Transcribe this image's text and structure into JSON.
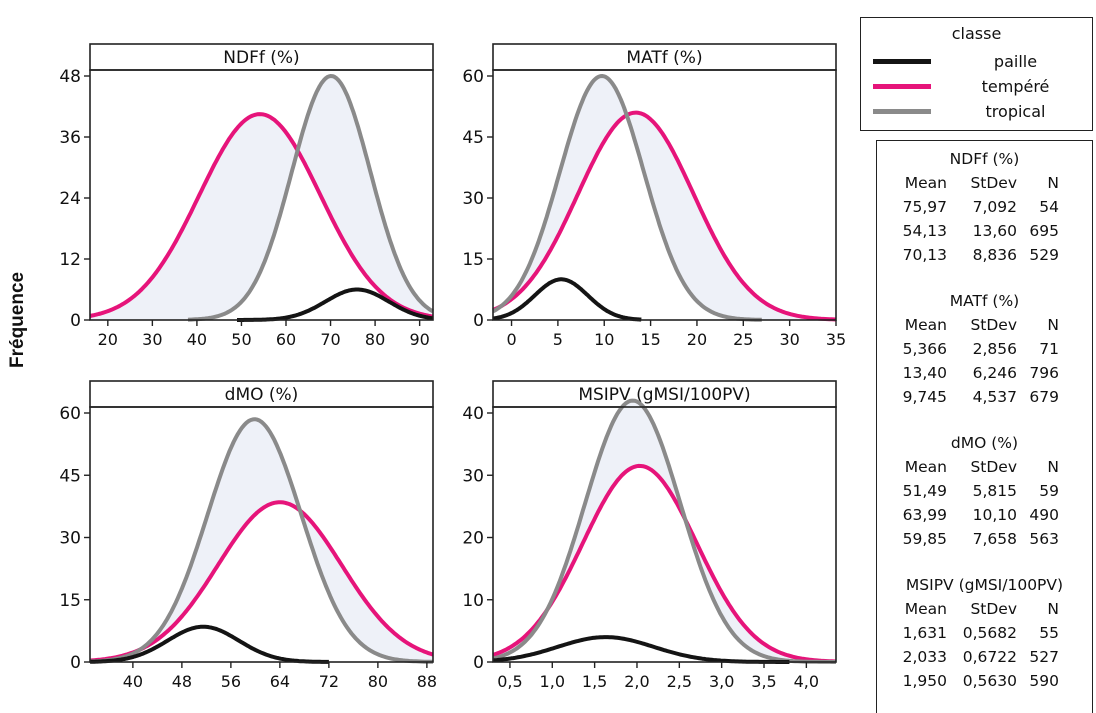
{
  "ylabel": "Fréquence",
  "legend": {
    "title": "classe",
    "items": [
      {
        "label": "paille",
        "color": "#141414"
      },
      {
        "label": "tempéré",
        "color": "#e6147a"
      },
      {
        "label": "tropical",
        "color": "#8a8a8a"
      }
    ]
  },
  "stats": [
    {
      "title": "NDFf (%)",
      "headers": [
        "Mean",
        "StDev",
        "N"
      ],
      "rows": [
        [
          "75,97",
          "7,092",
          "54"
        ],
        [
          "54,13",
          "13,60",
          "695"
        ],
        [
          "70,13",
          "8,836",
          "529"
        ]
      ]
    },
    {
      "title": "MATf (%)",
      "headers": [
        "Mean",
        "StDev",
        "N"
      ],
      "rows": [
        [
          "5,366",
          "2,856",
          "71"
        ],
        [
          "13,40",
          "6,246",
          "796"
        ],
        [
          "9,745",
          "4,537",
          "679"
        ]
      ]
    },
    {
      "title": "dMO (%)",
      "headers": [
        "Mean",
        "StDev",
        "N"
      ],
      "rows": [
        [
          "51,49",
          "5,815",
          "59"
        ],
        [
          "63,99",
          "10,10",
          "490"
        ],
        [
          "59,85",
          "7,658",
          "563"
        ]
      ]
    },
    {
      "title": "MSIPV (gMSI/100PV)",
      "headers": [
        "Mean",
        "StDev",
        "N"
      ],
      "rows": [
        [
          "1,631",
          "0,5682",
          "55"
        ],
        [
          "2,033",
          "0,6722",
          "527"
        ],
        [
          "1,950",
          "0,5630",
          "590"
        ]
      ]
    }
  ],
  "chart_data": [
    {
      "type": "line",
      "title": "NDFf (%)",
      "xlim": [
        16,
        93
      ],
      "ylim": [
        0,
        48
      ],
      "xticks": [
        20,
        30,
        40,
        50,
        60,
        70,
        80,
        90
      ],
      "xticklabels": [
        "20",
        "30",
        "40",
        "50",
        "60",
        "70",
        "80",
        "90"
      ],
      "yticks": [
        0,
        12,
        24,
        36,
        48
      ],
      "yticklabels": [
        "0",
        "12",
        "24",
        "36",
        "48"
      ],
      "series": [
        {
          "name": "paille",
          "mean": 75.97,
          "sd": 7.092,
          "peak": 6,
          "range": [
            49,
            93
          ]
        },
        {
          "name": "tempéré",
          "mean": 54.13,
          "sd": 13.6,
          "peak": 40.5,
          "range": [
            16,
            93
          ]
        },
        {
          "name": "tropical",
          "mean": 70.13,
          "sd": 8.836,
          "peak": 48,
          "range": [
            38,
            93
          ]
        }
      ]
    },
    {
      "type": "line",
      "title": "MATf (%)",
      "xlim": [
        -2,
        35
      ],
      "ylim": [
        0,
        60
      ],
      "xticks": [
        0,
        5,
        10,
        15,
        20,
        25,
        30,
        35
      ],
      "xticklabels": [
        "0",
        "5",
        "10",
        "15",
        "20",
        "25",
        "30",
        "35"
      ],
      "yticks": [
        0,
        15,
        30,
        45,
        60
      ],
      "yticklabels": [
        "0",
        "15",
        "30",
        "45",
        "60"
      ],
      "series": [
        {
          "name": "paille",
          "mean": 5.366,
          "sd": 2.856,
          "peak": 10,
          "range": [
            -2,
            14
          ]
        },
        {
          "name": "tempéré",
          "mean": 13.4,
          "sd": 6.246,
          "peak": 51,
          "range": [
            -2,
            35
          ]
        },
        {
          "name": "tropical",
          "mean": 9.745,
          "sd": 4.537,
          "peak": 60,
          "range": [
            -2,
            27
          ]
        }
      ]
    },
    {
      "type": "line",
      "title": "dMO (%)",
      "xlim": [
        33,
        89
      ],
      "ylim": [
        0,
        60
      ],
      "xticks": [
        40,
        48,
        56,
        64,
        72,
        80,
        88
      ],
      "xticklabels": [
        "40",
        "48",
        "56",
        "64",
        "72",
        "80",
        "88"
      ],
      "yticks": [
        0,
        15,
        30,
        45,
        60
      ],
      "yticklabels": [
        "0",
        "15",
        "30",
        "45",
        "60"
      ],
      "series": [
        {
          "name": "paille",
          "mean": 51.49,
          "sd": 5.815,
          "peak": 8.5,
          "range": [
            33,
            72
          ]
        },
        {
          "name": "tempéré",
          "mean": 63.99,
          "sd": 10.1,
          "peak": 38.5,
          "range": [
            33,
            89
          ]
        },
        {
          "name": "tropical",
          "mean": 59.85,
          "sd": 7.658,
          "peak": 58.5,
          "range": [
            33,
            89
          ]
        }
      ]
    },
    {
      "type": "line",
      "title": "MSIPV  (gMSI/100PV)",
      "xlim": [
        0.3,
        4.35
      ],
      "ylim": [
        0,
        40
      ],
      "xticks": [
        0.5,
        1.0,
        1.5,
        2.0,
        2.5,
        3.0,
        3.5,
        4.0
      ],
      "xticklabels": [
        "0,5",
        "1,0",
        "1,5",
        "2,0",
        "2,5",
        "3,0",
        "3,5",
        "4,0"
      ],
      "yticks": [
        0,
        10,
        20,
        30,
        40
      ],
      "yticklabels": [
        "0",
        "10",
        "20",
        "30",
        "40"
      ],
      "series": [
        {
          "name": "paille",
          "mean": 1.631,
          "sd": 0.5682,
          "peak": 4,
          "range": [
            0.3,
            3.8
          ]
        },
        {
          "name": "tempéré",
          "mean": 2.033,
          "sd": 0.6722,
          "peak": 31.5,
          "range": [
            0.3,
            4.35
          ]
        },
        {
          "name": "tropical",
          "mean": 1.95,
          "sd": 0.563,
          "peak": 42,
          "range": [
            0.3,
            4.35
          ]
        }
      ]
    }
  ]
}
